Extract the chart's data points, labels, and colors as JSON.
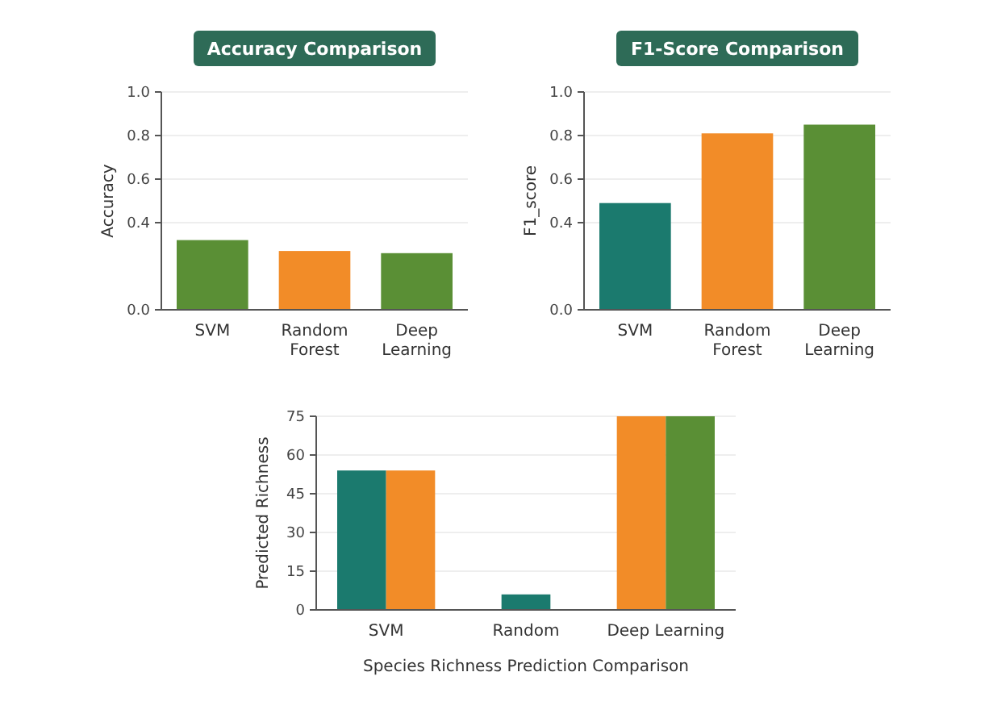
{
  "chart_data": [
    {
      "type": "bar",
      "title": "Accuracy Comparison",
      "ylabel": "Accuracy",
      "categories": [
        "SVM",
        "Random Forest",
        "Deep Learning"
      ],
      "values": [
        0.32,
        0.27,
        0.26
      ],
      "colors": [
        "#5a8f35",
        "#f28c28",
        "#5a8f35"
      ],
      "ylim": [
        0,
        1.0
      ],
      "yticks": [
        {
          "value": 0,
          "label": "0.0"
        },
        {
          "value": 0.4,
          "label": "0.4"
        },
        {
          "value": 0.6,
          "label": "0.6"
        },
        {
          "value": 0.8,
          "label": "0.8"
        },
        {
          "value": 1.0,
          "label": "1.0"
        }
      ],
      "grid": "y"
    },
    {
      "type": "bar",
      "title": "F1-Score Comparison",
      "ylabel": "F1_score",
      "categories": [
        "SVM",
        "Random Forest",
        "Deep Learning"
      ],
      "values": [
        0.49,
        0.81,
        0.85
      ],
      "colors": [
        "#1b7a6e",
        "#f28c28",
        "#5a8f35"
      ],
      "ylim": [
        0,
        1.0
      ],
      "yticks": [
        {
          "value": 0,
          "label": "0.0"
        },
        {
          "value": 0.4,
          "label": "0.4"
        },
        {
          "value": 0.6,
          "label": "0.6"
        },
        {
          "value": 0.8,
          "label": "0.8"
        },
        {
          "value": 1.0,
          "label": "1.0"
        }
      ],
      "grid": "y"
    },
    {
      "type": "bar",
      "xlabel": "Species Richness Prediction Comparison",
      "ylabel": "Predicted Richness",
      "categories": [
        "SVM",
        "Random",
        "Deep Learning"
      ],
      "series": [
        {
          "color": "#1b7a6e",
          "values": [
            54,
            6,
            null
          ]
        },
        {
          "color": "#f28c28",
          "values": [
            54,
            null,
            75
          ]
        },
        {
          "color": "#5a8f35",
          "values": [
            null,
            null,
            75
          ]
        }
      ],
      "ylim": [
        0,
        75
      ],
      "yticks": [
        0,
        15,
        30,
        45,
        60,
        75
      ],
      "grid": "y"
    }
  ]
}
